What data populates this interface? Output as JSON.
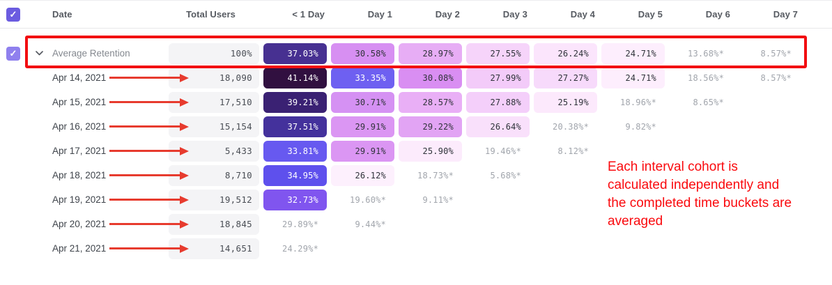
{
  "colors": {
    "header_checkbox": "#6b5ce0",
    "row_checkbox": "#8f80ee",
    "total_cell_bg": "#f4f4f6"
  },
  "annotations": {
    "box_color": "#f20d11",
    "arrow_color": "#e73b2e",
    "text_color": "#fa0a0e",
    "note_lines": [
      "Each interval cohort is",
      "calculated independently and",
      "the completed time buckets are",
      "averaged"
    ]
  },
  "table": {
    "header": {
      "columns": [
        "Date",
        "Total Users",
        "< 1 Day",
        "Day 1",
        "Day 2",
        "Day 3",
        "Day 4",
        "Day 5",
        "Day 6",
        "Day 7"
      ]
    },
    "rows": [
      {
        "label": "Average Retention",
        "total": "100%",
        "average": true,
        "arrow": false,
        "cells": [
          {
            "text": "37.03%",
            "bg": "#473091",
            "fg": "#ffffff"
          },
          {
            "text": "30.58%",
            "bg": "#d78ff2",
            "fg": "#2f333a"
          },
          {
            "text": "28.97%",
            "bg": "#e7adf5",
            "fg": "#2f333a"
          },
          {
            "text": "27.55%",
            "bg": "#f6d4fa",
            "fg": "#2f333a"
          },
          {
            "text": "26.24%",
            "bg": "#fbe5fc",
            "fg": "#2f333a"
          },
          {
            "text": "24.71%",
            "bg": "#fdeefd",
            "fg": "#2f333a"
          },
          {
            "text": "13.68%*"
          },
          {
            "text": "8.57%*"
          }
        ]
      },
      {
        "label": "Apr 14, 2021",
        "total": "18,090",
        "average": false,
        "arrow": true,
        "cells": [
          {
            "text": "41.14%",
            "bg": "#311040",
            "fg": "#ffffff"
          },
          {
            "text": "33.35%",
            "bg": "#6e60f1",
            "fg": "#ffffff"
          },
          {
            "text": "30.08%",
            "bg": "#d98ef2",
            "fg": "#2f333a"
          },
          {
            "text": "27.99%",
            "bg": "#f3cbf9",
            "fg": "#2f333a"
          },
          {
            "text": "27.27%",
            "bg": "#f7dafb",
            "fg": "#2f333a"
          },
          {
            "text": "24.71%",
            "bg": "#fdeefd",
            "fg": "#2f333a"
          },
          {
            "text": "18.56%*"
          },
          {
            "text": "8.57%*"
          }
        ]
      },
      {
        "label": "Apr 15, 2021",
        "total": "17,510",
        "average": false,
        "arrow": true,
        "cells": [
          {
            "text": "39.21%",
            "bg": "#3a2173",
            "fg": "#ffffff"
          },
          {
            "text": "30.71%",
            "bg": "#d591f3",
            "fg": "#2f333a"
          },
          {
            "text": "28.57%",
            "bg": "#e9aff6",
            "fg": "#2f333a"
          },
          {
            "text": "27.88%",
            "bg": "#f4cffa",
            "fg": "#2f333a"
          },
          {
            "text": "25.19%",
            "bg": "#fce9fc",
            "fg": "#2f333a"
          },
          {
            "text": "18.96%*"
          },
          {
            "text": "8.65%*"
          },
          {
            "text": ""
          }
        ]
      },
      {
        "label": "Apr 16, 2021",
        "total": "15,154",
        "average": false,
        "arrow": true,
        "cells": [
          {
            "text": "37.51%",
            "bg": "#44319c",
            "fg": "#ffffff"
          },
          {
            "text": "29.91%",
            "bg": "#db96f3",
            "fg": "#2f333a"
          },
          {
            "text": "29.22%",
            "bg": "#e2a4f4",
            "fg": "#2f333a"
          },
          {
            "text": "26.64%",
            "bg": "#f9e0fb",
            "fg": "#2f333a"
          },
          {
            "text": "20.38%*"
          },
          {
            "text": "9.82%*"
          },
          {
            "text": ""
          },
          {
            "text": ""
          }
        ]
      },
      {
        "label": "Apr 17, 2021",
        "total": "5,433",
        "average": false,
        "arrow": true,
        "cells": [
          {
            "text": "33.81%",
            "bg": "#6759f0",
            "fg": "#ffffff"
          },
          {
            "text": "29.91%",
            "bg": "#db96f3",
            "fg": "#2f333a"
          },
          {
            "text": "25.90%",
            "bg": "#fcebfc",
            "fg": "#2f333a"
          },
          {
            "text": "19.46%*"
          },
          {
            "text": "8.12%*"
          },
          {
            "text": ""
          },
          {
            "text": ""
          },
          {
            "text": ""
          }
        ]
      },
      {
        "label": "Apr 18, 2021",
        "total": "8,710",
        "average": false,
        "arrow": true,
        "cells": [
          {
            "text": "34.95%",
            "bg": "#5e50ed",
            "fg": "#ffffff"
          },
          {
            "text": "26.12%",
            "bg": "#fdf0fd",
            "fg": "#2f333a"
          },
          {
            "text": "18.73%*"
          },
          {
            "text": "5.68%*"
          },
          {
            "text": ""
          },
          {
            "text": ""
          },
          {
            "text": ""
          },
          {
            "text": ""
          }
        ]
      },
      {
        "label": "Apr 19, 2021",
        "total": "19,512",
        "average": false,
        "arrow": true,
        "cells": [
          {
            "text": "32.73%",
            "bg": "#8055ef",
            "fg": "#ffffff"
          },
          {
            "text": "19.60%*"
          },
          {
            "text": "9.11%*"
          },
          {
            "text": ""
          },
          {
            "text": ""
          },
          {
            "text": ""
          },
          {
            "text": ""
          },
          {
            "text": ""
          }
        ]
      },
      {
        "label": "Apr 20, 2021",
        "total": "18,845",
        "average": false,
        "arrow": true,
        "cells": [
          {
            "text": "29.89%*"
          },
          {
            "text": "9.44%*"
          },
          {
            "text": ""
          },
          {
            "text": ""
          },
          {
            "text": ""
          },
          {
            "text": ""
          },
          {
            "text": ""
          },
          {
            "text": ""
          }
        ]
      },
      {
        "label": "Apr 21, 2021",
        "total": "14,651",
        "average": false,
        "arrow": true,
        "cells": [
          {
            "text": "24.29%*"
          },
          {
            "text": ""
          },
          {
            "text": ""
          },
          {
            "text": ""
          },
          {
            "text": ""
          },
          {
            "text": ""
          },
          {
            "text": ""
          },
          {
            "text": ""
          }
        ]
      }
    ]
  }
}
